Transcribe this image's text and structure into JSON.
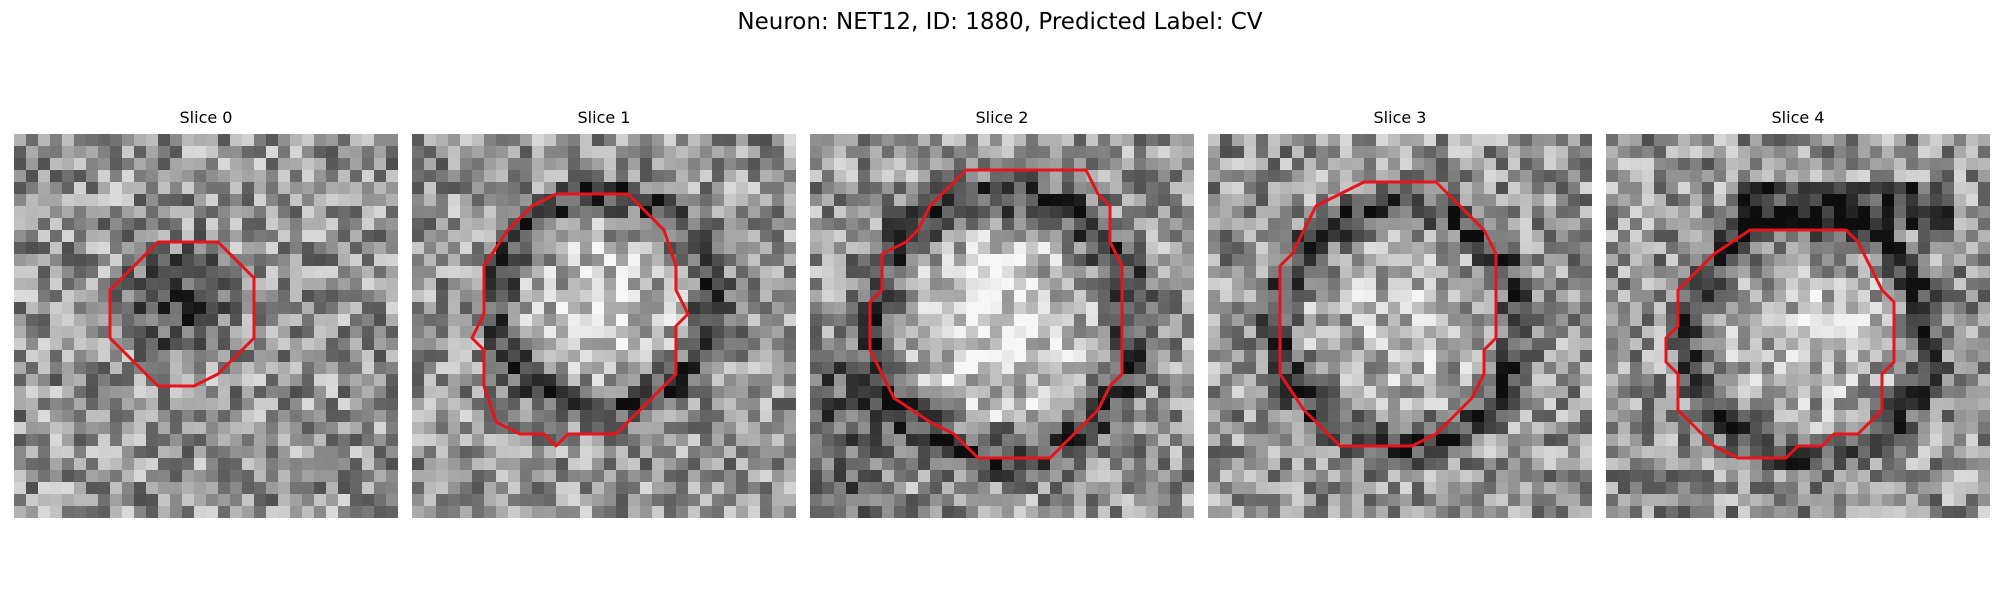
{
  "figure": {
    "title": "Neuron: NET12, ID: 1880, Predicted Label: CV"
  },
  "panels": [
    {
      "title": "Slice 0"
    },
    {
      "title": "Slice 1"
    },
    {
      "title": "Slice 2"
    },
    {
      "title": "Slice 3"
    },
    {
      "title": "Slice 4"
    }
  ],
  "colors": {
    "contour": "#e8141b",
    "background": "#ffffff"
  }
}
